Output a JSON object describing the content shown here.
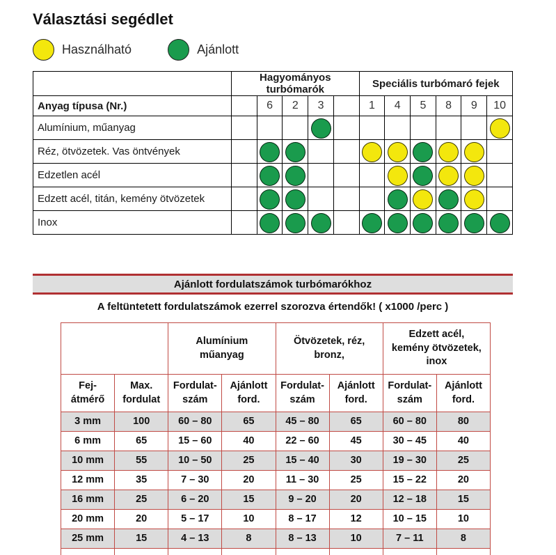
{
  "page": {
    "title": "Választási segédlet"
  },
  "colors": {
    "dot_green": "#1a9b4d",
    "dot_yellow": "#f3e70d",
    "banner_red": "#b03032",
    "banner_gray": "#dedede",
    "table2_border": "#c04a44",
    "row_gray": "#dcdcdc"
  },
  "legend": {
    "usable": {
      "label": "Használható",
      "color": "#f3e70d"
    },
    "recommended": {
      "label": "Ajánlott",
      "color": "#1a9b4d"
    }
  },
  "selection_table": {
    "group_headers": [
      {
        "label": "Hagyományos turbómarók",
        "span": 5
      },
      {
        "label": "Speciális turbómaró fejek",
        "span": 6
      }
    ],
    "row_header_label": "Anyag típusa (Nr.)",
    "column_numbers": [
      "",
      "6",
      "2",
      "3",
      "",
      "1",
      "4",
      "5",
      "8",
      "9",
      "10"
    ],
    "rows": [
      {
        "label": "Alumínium, műanyag",
        "dots": [
          "",
          "",
          "",
          "G",
          "",
          "",
          "",
          "",
          "",
          "",
          "Y"
        ]
      },
      {
        "label": "Réz, ötvözetek. Vas öntvények",
        "dots": [
          "",
          "G",
          "G",
          "",
          "",
          "Y",
          "Y",
          "G",
          "Y",
          "Y",
          ""
        ]
      },
      {
        "label": "Edzetlen acél",
        "dots": [
          "",
          "G",
          "G",
          "",
          "",
          "",
          "Y",
          "G",
          "Y",
          "Y",
          ""
        ]
      },
      {
        "label": "Edzett acél, titán, kemény ötvözetek",
        "dots": [
          "",
          "G",
          "G",
          "",
          "",
          "",
          "G",
          "Y",
          "G",
          "Y",
          ""
        ]
      },
      {
        "label": "Inox",
        "dots": [
          "",
          "G",
          "G",
          "G",
          "",
          "G",
          "G",
          "G",
          "G",
          "G",
          "G"
        ]
      }
    ]
  },
  "speed_section": {
    "banner_title": "Ajánlott fordulatszámok turbómarókhoz",
    "subtitle": "A feltüntetett fordulatszámok ezerrel szorozva értendők! ( x1000 /perc )"
  },
  "speed_table": {
    "group_headers": [
      "Alumínium\nműanyag",
      "Ötvözetek, réz,\nbronz,",
      "Edzett acél,\nkemény ötvözetek,\ninox"
    ],
    "sub_headers": [
      "Fej-\nátmérő",
      "Max.\nfordulat",
      "Fordulat-\nszám",
      "Ajánlott\nford.",
      "Fordulat-\nszám",
      "Ajánlott\nford.",
      "Fordulat-\nszám",
      "Ajánlott\nford."
    ],
    "rows": [
      [
        "3 mm",
        "100",
        "60 – 80",
        "65",
        "45 – 80",
        "65",
        "60 – 80",
        "80"
      ],
      [
        "6 mm",
        "65",
        "15 – 60",
        "40",
        "22 – 60",
        "45",
        "30 – 45",
        "40"
      ],
      [
        "10 mm",
        "55",
        "10 – 50",
        "25",
        "15 – 40",
        "30",
        "19 – 30",
        "25"
      ],
      [
        "12 mm",
        "35",
        "7 – 30",
        "20",
        "11 – 30",
        "25",
        "15 – 22",
        "20"
      ],
      [
        "16 mm",
        "25",
        "6 – 20",
        "15",
        "9 – 20",
        "20",
        "12 – 18",
        "15"
      ],
      [
        "20 mm",
        "20",
        "5 – 17",
        "10",
        "8 – 17",
        "12",
        "10 – 15",
        "10"
      ],
      [
        "25 mm",
        "15",
        "4 – 13",
        "8",
        "8 – 13",
        "10",
        "7 – 11",
        "8"
      ]
    ]
  }
}
